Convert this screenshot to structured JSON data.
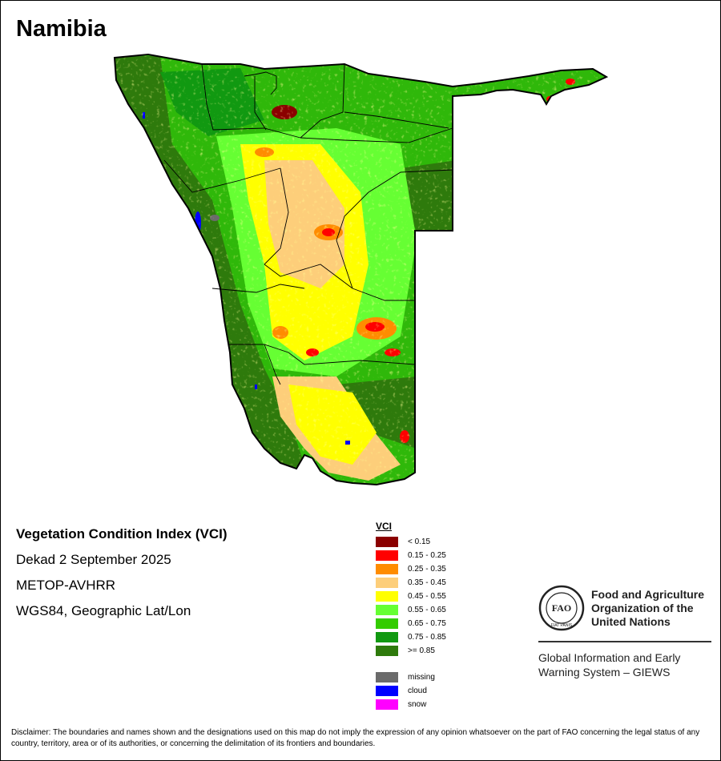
{
  "map": {
    "title": "Namibia",
    "product": "Vegetation Condition Index (VCI)",
    "period": "Dekad 2 September 2025",
    "sensor": "METOP-AVHRR",
    "projection": "WGS84, Geographic Lat/Lon"
  },
  "legend": {
    "title": "VCI",
    "classes": [
      {
        "label": "< 0.15",
        "color": "#8b0000"
      },
      {
        "label": "0.15 - 0.25",
        "color": "#ff0000"
      },
      {
        "label": "0.25 - 0.35",
        "color": "#ff8c00"
      },
      {
        "label": "0.35 - 0.45",
        "color": "#fdce7a"
      },
      {
        "label": "0.45 - 0.55",
        "color": "#ffff00"
      },
      {
        "label": "0.55 - 0.65",
        "color": "#66ff33"
      },
      {
        "label": "0.65 - 0.75",
        "color": "#33cc00"
      },
      {
        "label": "0.75 - 0.85",
        "color": "#119911"
      },
      {
        "label": ">= 0.85",
        "color": "#2e7a0c"
      }
    ],
    "other": [
      {
        "label": "missing",
        "color": "#6b6b6b"
      },
      {
        "label": "cloud",
        "color": "#0000ff"
      },
      {
        "label": "snow",
        "color": "#ff00ff"
      }
    ]
  },
  "fao": {
    "org_name": "Food and Agriculture\nOrganization of the\nUnited Nations",
    "system": "Global Information and Early\nWarning System – GIEWS",
    "logo_text": "FAO",
    "logo_motto": "FIAT PANIS"
  },
  "disclaimer": "Disclaimer: The boundaries and names shown and the designations used on this map do not imply the expression of any opinion whatsoever on the part of FAO concerning the legal status of any country, territory, area or of its authorities, or concerning the delimitation of its frontiers and boundaries."
}
